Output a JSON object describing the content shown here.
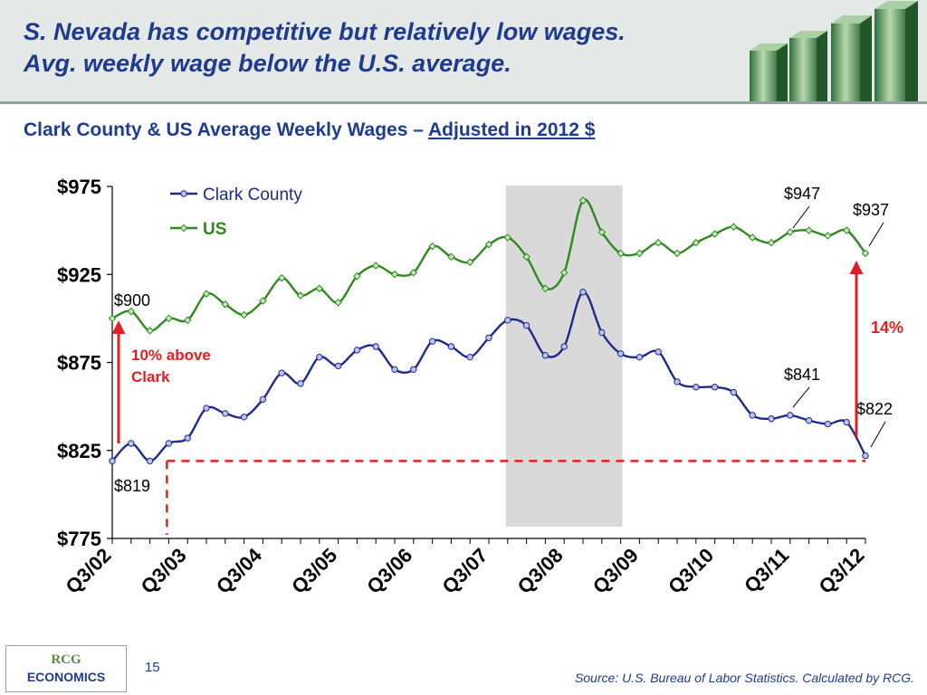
{
  "header": {
    "title_line1": "S. Nevada has competitive but relatively low wages.",
    "title_line2": "Avg. weekly wage below the U.S. average."
  },
  "subtitle": {
    "prefix": "Clark County  & US Average Weekly Wages – ",
    "underlined": "Adjusted in 2012 $"
  },
  "colors": {
    "title": "#1f3b8f",
    "clark": "#1f2a8a",
    "us": "#2e8a1f",
    "annotation_red": "#e02020",
    "recession_shade": "#d9d9d9"
  },
  "chart_data": {
    "type": "line",
    "title": "Clark County  & US Average Weekly Wages – Adjusted in 2012 $",
    "xlabel": "",
    "ylabel": "",
    "ylim": [
      775,
      975
    ],
    "yticks": [
      "$775",
      "$825",
      "$875",
      "$925",
      "$975"
    ],
    "ytick_values": [
      775,
      825,
      875,
      925,
      975
    ],
    "xtick_labels": [
      "Q3/02",
      "Q3/03",
      "Q3/04",
      "Q3/05",
      "Q3/06",
      "Q3/07",
      "Q3/08",
      "Q3/09",
      "Q3/10",
      "Q3/11",
      "Q3/12"
    ],
    "x_periods": 41,
    "legend_position": "top-left",
    "grid": false,
    "recession_shading": {
      "from_index": 21,
      "to_index": 27
    },
    "series": [
      {
        "name": "Clark County",
        "marker": "circle",
        "values": [
          819,
          829,
          819,
          829,
          832,
          849,
          846,
          844,
          854,
          869,
          863,
          878,
          873,
          882,
          884,
          871,
          871,
          887,
          884,
          878,
          889,
          899,
          896,
          879,
          884,
          915,
          892,
          880,
          878,
          881,
          864,
          861,
          861,
          858,
          845,
          843,
          845,
          842,
          840,
          841,
          822
        ]
      },
      {
        "name": "US",
        "marker": "diamond",
        "values": [
          900,
          904,
          893,
          900,
          899,
          914,
          908,
          902,
          910,
          923,
          913,
          917,
          909,
          924,
          930,
          925,
          926,
          941,
          935,
          932,
          942,
          946,
          935,
          917,
          926,
          967,
          949,
          937,
          937,
          943,
          937,
          943,
          948,
          952,
          946,
          943,
          949,
          950,
          947,
          950,
          937
        ]
      }
    ],
    "annotations": [
      {
        "text": "$900"
      },
      {
        "text": "$819"
      },
      {
        "text": "$947"
      },
      {
        "text": "$937"
      },
      {
        "text": "$841"
      },
      {
        "text": "$822"
      },
      {
        "text": "10% above"
      },
      {
        "text": "Clark"
      },
      {
        "text": "14%"
      }
    ]
  },
  "footer": {
    "logo_top": "RCG",
    "logo_bottom": "ECONOMICS",
    "page_number": "15",
    "source": "Source: U.S. Bureau of Labor Statistics. Calculated by RCG."
  }
}
